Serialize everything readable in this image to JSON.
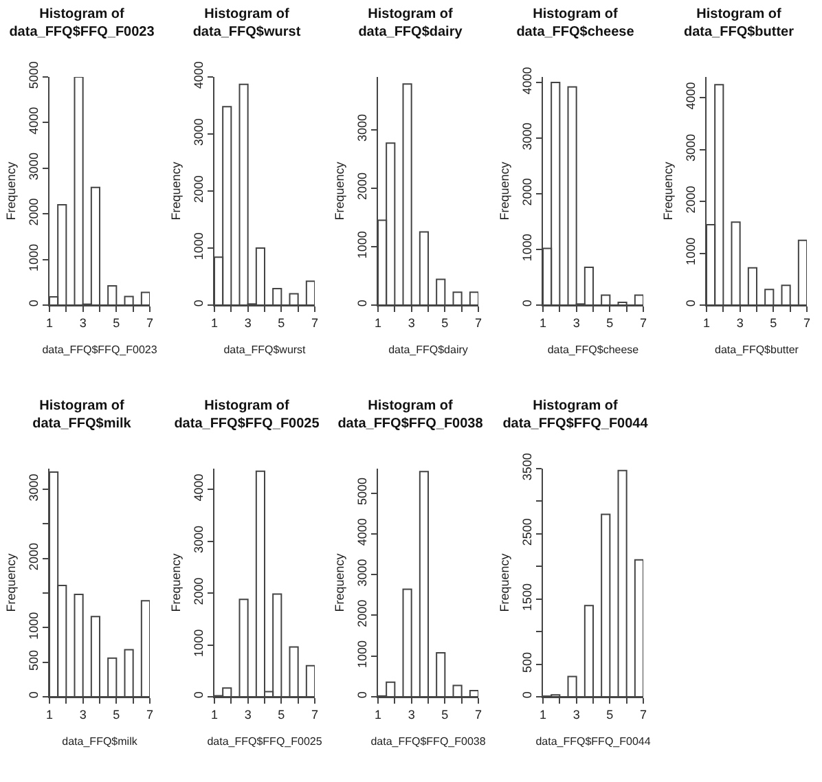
{
  "chart_data": [
    {
      "type": "histogram",
      "title": "Histogram of data_FFQ$FFQ_F0023",
      "xlabel": "data_FFQ$FFQ_F0023",
      "ylabel": "Frequency",
      "bins": [
        1,
        1.5,
        2,
        2.5,
        3,
        3.5,
        4,
        4.5,
        5,
        5.5,
        6,
        6.5,
        7
      ],
      "values": [
        180,
        2200,
        0,
        5000,
        20,
        2580,
        0,
        420,
        0,
        190,
        0,
        280
      ],
      "xlim": [
        1,
        7
      ],
      "xticks": [
        1,
        {
          "value": 2,
          "label": null
        },
        3,
        {
          "value": 4,
          "label": null
        },
        5,
        {
          "value": 6,
          "label": null
        },
        7
      ],
      "ylim": [
        0,
        5000
      ],
      "yticks": [
        0,
        1000,
        2000,
        3000,
        4000,
        5000
      ]
    },
    {
      "type": "histogram",
      "title": "Histogram of data_FFQ$wurst",
      "xlabel": "data_FFQ$wurst",
      "ylabel": "Frequency",
      "bins": [
        1,
        1.5,
        2,
        2.5,
        3,
        3.5,
        4,
        4.5,
        5,
        5.5,
        6,
        6.5,
        7
      ],
      "values": [
        840,
        3480,
        0,
        3870,
        20,
        1000,
        0,
        290,
        0,
        200,
        0,
        420
      ],
      "xlim": [
        1,
        7
      ],
      "xticks": [
        1,
        {
          "value": 2,
          "label": null
        },
        3,
        {
          "value": 4,
          "label": null
        },
        5,
        {
          "value": 6,
          "label": null
        },
        7
      ],
      "ylim": [
        0,
        4000
      ],
      "yticks": [
        0,
        1000,
        2000,
        3000,
        4000
      ]
    },
    {
      "type": "histogram",
      "title": "Histogram of data_FFQ$dairy",
      "xlabel": "data_FFQ$dairy",
      "ylabel": "Frequency",
      "bins": [
        1,
        1.5,
        2,
        2.5,
        3,
        3.5,
        4,
        4.5,
        5,
        5.5,
        6,
        6.5,
        7
      ],
      "values": [
        1450,
        2770,
        0,
        3780,
        0,
        1250,
        0,
        440,
        0,
        220,
        0,
        220
      ],
      "xlim": [
        1,
        7
      ],
      "xticks": [
        1,
        {
          "value": 2,
          "label": null
        },
        3,
        {
          "value": 4,
          "label": null
        },
        5,
        {
          "value": 6,
          "label": null
        },
        7
      ],
      "ylim": [
        0,
        3900
      ],
      "yticks": [
        0,
        1000,
        2000,
        3000
      ]
    },
    {
      "type": "histogram",
      "title": "Histogram of data_FFQ$cheese",
      "xlabel": "data_FFQ$cheese",
      "ylabel": "Frequency",
      "bins": [
        1,
        1.5,
        2,
        2.5,
        3,
        3.5,
        4,
        4.5,
        5,
        5.5,
        6,
        6.5,
        7
      ],
      "values": [
        1020,
        4000,
        0,
        3920,
        20,
        680,
        0,
        180,
        0,
        50,
        0,
        180
      ],
      "xlim": [
        1,
        7
      ],
      "xticks": [
        1,
        {
          "value": 2,
          "label": null
        },
        3,
        {
          "value": 4,
          "label": null
        },
        5,
        {
          "value": 6,
          "label": null
        },
        7
      ],
      "ylim": [
        0,
        4100
      ],
      "yticks": [
        0,
        1000,
        2000,
        3000,
        4000
      ]
    },
    {
      "type": "histogram",
      "title": "Histogram of data_FFQ$butter",
      "xlabel": "data_FFQ$butter",
      "ylabel": "Frequency",
      "bins": [
        1,
        1.5,
        2,
        2.5,
        3,
        3.5,
        4,
        4.5,
        5,
        5.5,
        6,
        6.5,
        7
      ],
      "values": [
        1550,
        4250,
        0,
        1600,
        0,
        720,
        0,
        300,
        0,
        380,
        0,
        1250
      ],
      "xlim": [
        1,
        7
      ],
      "xticks": [
        1,
        {
          "value": 2,
          "label": null
        },
        3,
        {
          "value": 4,
          "label": null
        },
        5,
        {
          "value": 6,
          "label": null
        },
        7
      ],
      "ylim": [
        0,
        4400
      ],
      "yticks": [
        0,
        1000,
        2000,
        3000,
        4000
      ]
    },
    {
      "type": "histogram",
      "title": "Histogram of data_FFQ$milk",
      "xlabel": "data_FFQ$milk",
      "ylabel": "Frequency",
      "bins": [
        1,
        1.5,
        2,
        2.5,
        3,
        3.5,
        4,
        4.5,
        5,
        5.5,
        6,
        6.5,
        7
      ],
      "values": [
        3250,
        1610,
        0,
        1480,
        0,
        1160,
        0,
        560,
        0,
        680,
        0,
        1390
      ],
      "xlim": [
        1,
        7
      ],
      "xticks": [
        1,
        {
          "value": 2,
          "label": null
        },
        3,
        {
          "value": 4,
          "label": null
        },
        5,
        {
          "value": 6,
          "label": null
        },
        7
      ],
      "ylim": [
        0,
        3300
      ],
      "yticks": [
        0,
        500,
        1000,
        {
          "value": 1500,
          "label": null
        },
        2000,
        {
          "value": 2500,
          "label": null
        },
        3000
      ]
    },
    {
      "type": "histogram",
      "title": "Histogram of data_FFQ$FFQ_F0025",
      "xlabel": "data_FFQ$FFQ_F0025",
      "ylabel": "Frequency",
      "bins": [
        1,
        1.5,
        2,
        2.5,
        3,
        3.5,
        4,
        4.5,
        5,
        5.5,
        6,
        6.5,
        7
      ],
      "values": [
        20,
        170,
        0,
        1880,
        0,
        4350,
        100,
        1980,
        0,
        960,
        0,
        600
      ],
      "xlim": [
        1,
        7
      ],
      "xticks": [
        1,
        {
          "value": 2,
          "label": null
        },
        3,
        {
          "value": 4,
          "label": null
        },
        5,
        {
          "value": 6,
          "label": null
        },
        7
      ],
      "ylim": [
        0,
        4400
      ],
      "yticks": [
        0,
        1000,
        2000,
        3000,
        4000
      ]
    },
    {
      "type": "histogram",
      "title": "Histogram of data_FFQ$FFQ_F0038",
      "xlabel": "data_FFQ$FFQ_F0038",
      "ylabel": "Frequency",
      "bins": [
        1,
        1.5,
        2,
        2.5,
        3,
        3.5,
        4,
        4.5,
        5,
        5.5,
        6,
        6.5,
        7
      ],
      "values": [
        20,
        360,
        0,
        2640,
        0,
        5530,
        0,
        1080,
        0,
        280,
        0,
        150
      ],
      "xlim": [
        1,
        7
      ],
      "xticks": [
        1,
        {
          "value": 2,
          "label": null
        },
        3,
        {
          "value": 4,
          "label": null
        },
        5,
        {
          "value": 6,
          "label": null
        },
        7
      ],
      "ylim": [
        0,
        5600
      ],
      "yticks": [
        0,
        1000,
        2000,
        3000,
        4000,
        5000
      ]
    },
    {
      "type": "histogram",
      "title": "Histogram of data_FFQ$FFQ_F0044",
      "xlabel": "data_FFQ$FFQ_F0044",
      "ylabel": "Frequency",
      "bins": [
        1,
        1.5,
        2,
        2.5,
        3,
        3.5,
        4,
        4.5,
        5,
        5.5,
        6,
        6.5,
        7
      ],
      "values": [
        10,
        30,
        0,
        310,
        0,
        1400,
        0,
        2800,
        0,
        3470,
        0,
        2100
      ],
      "xlim": [
        1,
        7
      ],
      "xticks": [
        1,
        {
          "value": 2,
          "label": null
        },
        3,
        {
          "value": 4,
          "label": null
        },
        5,
        {
          "value": 6,
          "label": null
        },
        7
      ],
      "ylim": [
        0,
        3500
      ],
      "yticks": [
        0,
        500,
        {
          "value": 1000,
          "label": null
        },
        1500,
        {
          "value": 2000,
          "label": null
        },
        2500,
        {
          "value": 3000,
          "label": null
        },
        3500
      ]
    }
  ]
}
